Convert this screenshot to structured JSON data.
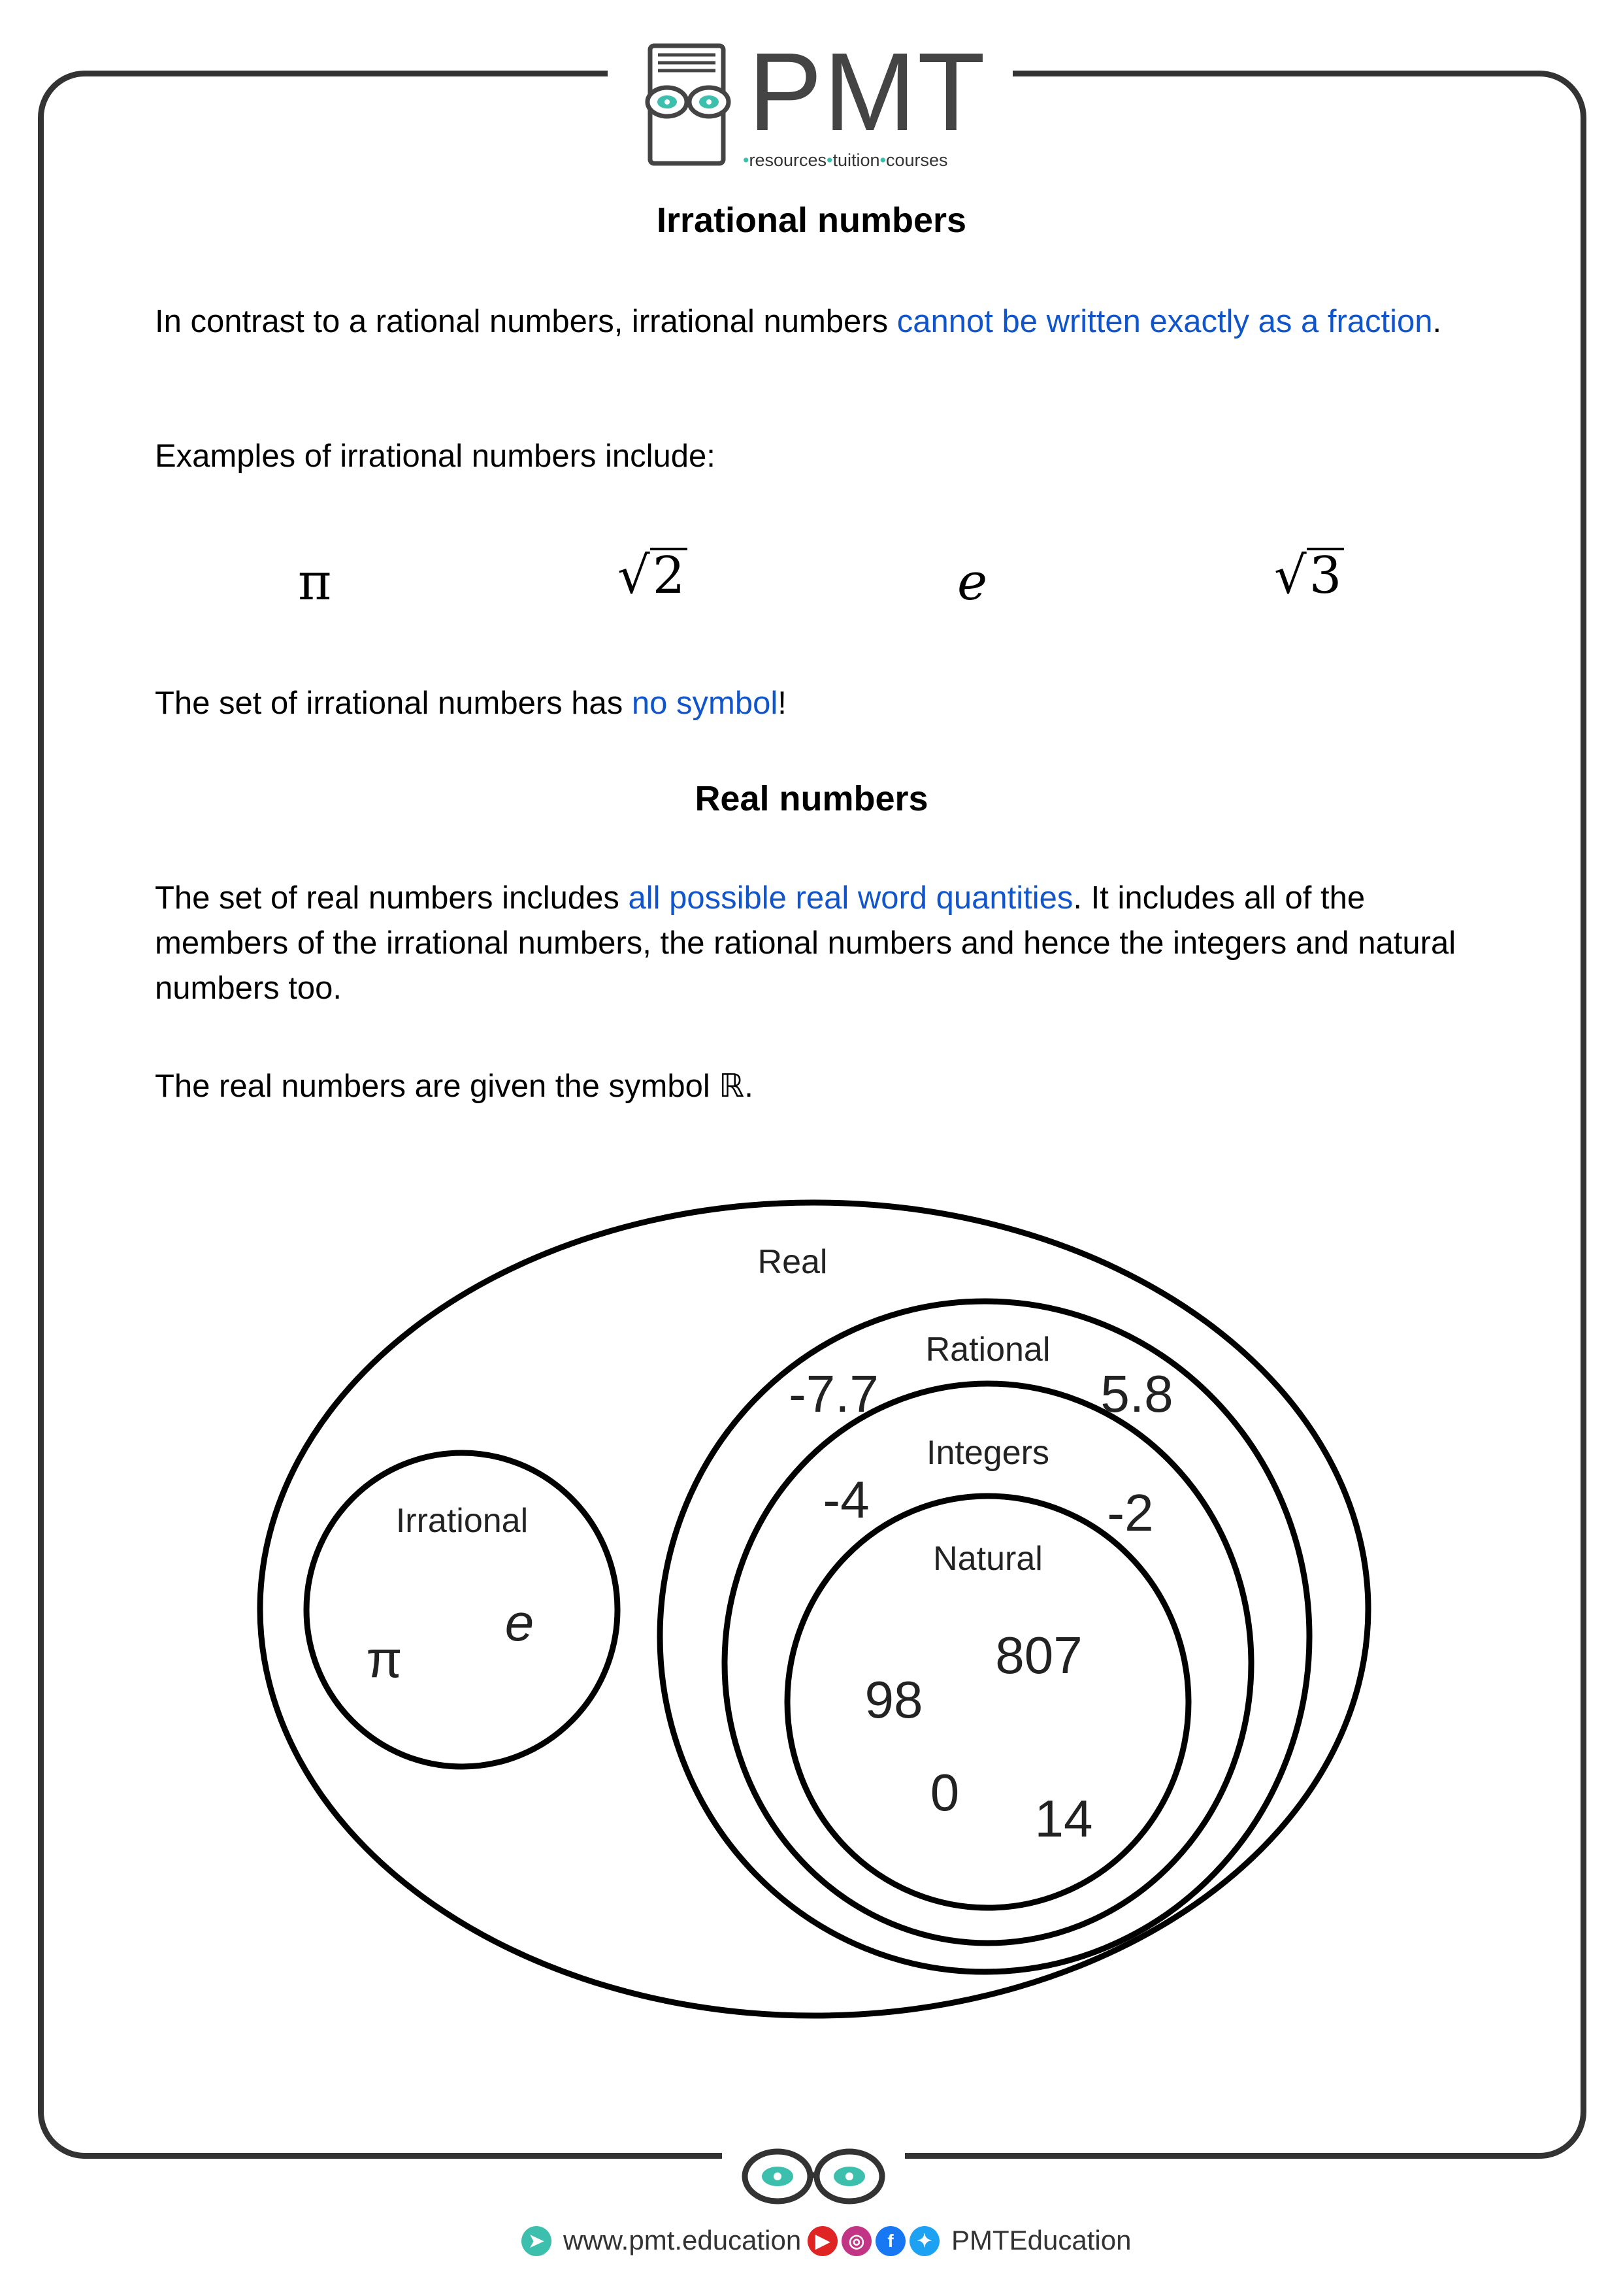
{
  "logo": {
    "brand": "PMT",
    "tag_parts": [
      "resources",
      "tuition",
      "courses"
    ]
  },
  "section1": {
    "title": "Irrational numbers",
    "intro_plain": "In contrast to a rational numbers, irrational numbers ",
    "intro_highlight": "cannot be written exactly as a fraction",
    "intro_end": ".",
    "examples_label": "Examples of irrational numbers include:",
    "examples": [
      "π",
      "2",
      "e",
      "3"
    ],
    "symbol_plain": "The set of irrational numbers has ",
    "symbol_highlight": "no symbol",
    "symbol_end": "!"
  },
  "section2": {
    "title": "Real numbers",
    "para_plain1": "The set of real numbers includes ",
    "para_highlight": "all possible real word quantities",
    "para_plain2": ". It includes all of the members of the irrational numbers, the rational numbers and hence the integers and natural numbers too.",
    "symbol_text": "The real numbers are given the symbol ",
    "symbol": "ℝ",
    "symbol_end": "."
  },
  "diagram": {
    "labels": {
      "real": "Real",
      "rational": "Rational",
      "integers": "Integers",
      "natural": "Natural",
      "irrational": "Irrational"
    },
    "irrational_members": [
      "π",
      "e"
    ],
    "rational_members": [
      "-7.7",
      "5.8"
    ],
    "integer_members": [
      "-4",
      "-2"
    ],
    "natural_members": [
      "807",
      "98",
      "0",
      "14"
    ]
  },
  "footer": {
    "website": "www.pmt.education",
    "handle": "PMTEducation"
  },
  "colors": {
    "highlight": "#1155cc",
    "brand_teal": "#3dbfae",
    "frame": "#333333"
  }
}
